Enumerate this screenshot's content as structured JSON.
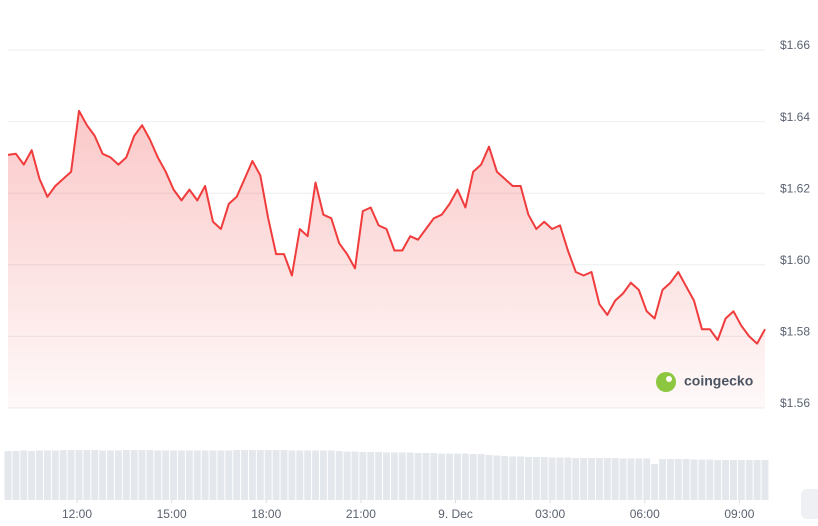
{
  "chart_data": {
    "type": "line",
    "watermark": "coingecko",
    "color": "#f03c3c",
    "xlim": [
      0,
      96
    ],
    "xticks": [
      {
        "value": 8.75,
        "label": "12:00"
      },
      {
        "value": 20.75,
        "label": "15:00"
      },
      {
        "value": 32.75,
        "label": "18:00"
      },
      {
        "value": 44.75,
        "label": "21:00"
      },
      {
        "value": 56.75,
        "label": "9. Dec"
      },
      {
        "value": 68.75,
        "label": "03:00"
      },
      {
        "value": 80.75,
        "label": "06:00"
      },
      {
        "value": 92.75,
        "label": "09:00"
      }
    ],
    "ylim": [
      1.56,
      1.66
    ],
    "yticks": [
      {
        "value": 1.56,
        "label": "$1.56"
      },
      {
        "value": 1.58,
        "label": "$1.58"
      },
      {
        "value": 1.6,
        "label": "$1.60"
      },
      {
        "value": 1.62,
        "label": "$1.62"
      },
      {
        "value": 1.64,
        "label": "$1.64"
      },
      {
        "value": 1.66,
        "label": "$1.66"
      }
    ],
    "grid": true,
    "values": [
      1.6307,
      1.631,
      1.628,
      1.632,
      1.624,
      1.619,
      1.622,
      1.624,
      1.626,
      1.643,
      1.639,
      1.636,
      1.631,
      1.63,
      1.628,
      1.63,
      1.636,
      1.639,
      1.635,
      1.63,
      1.626,
      1.621,
      1.618,
      1.621,
      1.618,
      1.622,
      1.612,
      1.61,
      1.617,
      1.619,
      1.624,
      1.629,
      1.625,
      1.613,
      1.603,
      1.603,
      1.597,
      1.61,
      1.608,
      1.623,
      1.614,
      1.613,
      1.606,
      1.603,
      1.599,
      1.615,
      1.616,
      1.611,
      1.61,
      1.604,
      1.604,
      1.608,
      1.607,
      1.61,
      1.613,
      1.614,
      1.617,
      1.621,
      1.616,
      1.626,
      1.628,
      1.633,
      1.626,
      1.624,
      1.622,
      1.622,
      1.614,
      1.61,
      1.612,
      1.61,
      1.611,
      1.604,
      1.598,
      1.597,
      1.598,
      1.589,
      1.586,
      1.59,
      1.592,
      1.595,
      1.593,
      1.587,
      1.585,
      1.593,
      1.595,
      1.598,
      1.594,
      1.59,
      1.582,
      1.582,
      1.579,
      1.585,
      1.587,
      1.583,
      1.58,
      1.578,
      1.582
    ],
    "volume": [
      98,
      98,
      99,
      98,
      99,
      99,
      99,
      100,
      100,
      100,
      100,
      100,
      99,
      99,
      99,
      100,
      100,
      100,
      100,
      99,
      99,
      99,
      99,
      99,
      99,
      99,
      99,
      99,
      99,
      100,
      100,
      100,
      100,
      100,
      100,
      100,
      99,
      99,
      99,
      99,
      99,
      99,
      98,
      97,
      97,
      96,
      96,
      96,
      95,
      95,
      95,
      95,
      94,
      94,
      94,
      93,
      93,
      93,
      93,
      92,
      92,
      90,
      89,
      88,
      87,
      87,
      86,
      86,
      86,
      85,
      85,
      85,
      84,
      84,
      84,
      84,
      84,
      84,
      83,
      83,
      83,
      83,
      72,
      82,
      82,
      82,
      82,
      81,
      81,
      81,
      80,
      80,
      80,
      80,
      80,
      80,
      80
    ]
  }
}
